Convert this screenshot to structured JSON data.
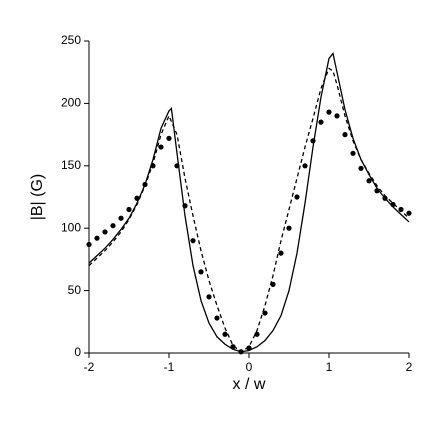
{
  "chart_data": {
    "type": "line",
    "xlabel": "x / w",
    "ylabel": "|B| (G)",
    "xlim": [
      -2,
      2
    ],
    "ylim": [
      0,
      250
    ],
    "xticks": [
      -2,
      -1,
      0,
      1,
      2
    ],
    "yticks": [
      0,
      50,
      100,
      150,
      200,
      250
    ],
    "grid": false,
    "series": [
      {
        "style": "solid",
        "color": "#000000",
        "x": [
          -2,
          -1.9,
          -1.8,
          -1.7,
          -1.6,
          -1.5,
          -1.4,
          -1.3,
          -1.2,
          -1.1,
          -1.0,
          -0.97,
          -0.9,
          -0.8,
          -0.7,
          -0.6,
          -0.5,
          -0.4,
          -0.3,
          -0.2,
          -0.1,
          0,
          0.1,
          0.2,
          0.3,
          0.4,
          0.5,
          0.6,
          0.7,
          0.8,
          0.9,
          1.0,
          1.05,
          1.1,
          1.2,
          1.3,
          1.4,
          1.5,
          1.6,
          1.7,
          1.8,
          1.9,
          2.0
        ],
        "values": [
          72,
          78,
          84,
          91,
          99,
          108,
          120,
          135,
          155,
          180,
          194,
          196,
          160,
          110,
          70,
          42,
          24,
          13,
          7,
          3,
          1,
          2,
          5,
          10,
          18,
          30,
          50,
          80,
          120,
          165,
          205,
          236,
          240,
          225,
          195,
          172,
          155,
          143,
          132,
          124,
          117,
          111,
          105
        ]
      },
      {
        "style": "dashed",
        "color": "#000000",
        "x": [
          -2,
          -1.9,
          -1.8,
          -1.7,
          -1.6,
          -1.5,
          -1.4,
          -1.3,
          -1.2,
          -1.1,
          -1.0,
          -0.9,
          -0.8,
          -0.7,
          -0.6,
          -0.5,
          -0.4,
          -0.3,
          -0.2,
          -0.1,
          0,
          0.1,
          0.2,
          0.3,
          0.4,
          0.5,
          0.6,
          0.7,
          0.8,
          0.9,
          1.0,
          1.05,
          1.1,
          1.2,
          1.3,
          1.4,
          1.5,
          1.6,
          1.7,
          1.8,
          1.9,
          2.0
        ],
        "values": [
          70,
          76,
          82,
          89,
          97,
          107,
          119,
          134,
          152,
          175,
          190,
          175,
          140,
          110,
          82,
          58,
          38,
          20,
          6,
          1,
          5,
          18,
          38,
          62,
          90,
          115,
          140,
          165,
          188,
          212,
          228,
          226,
          215,
          190,
          170,
          155,
          144,
          134,
          126,
          120,
          114,
          108
        ]
      },
      {
        "style": "dots",
        "color": "#000000",
        "x": [
          -2,
          -1.9,
          -1.8,
          -1.7,
          -1.6,
          -1.5,
          -1.4,
          -1.3,
          -1.2,
          -1.1,
          -1.0,
          -0.9,
          -0.8,
          -0.7,
          -0.6,
          -0.5,
          -0.4,
          -0.3,
          -0.2,
          -0.1,
          0,
          0.1,
          0.2,
          0.3,
          0.4,
          0.5,
          0.6,
          0.7,
          0.8,
          0.9,
          1.0,
          1.1,
          1.2,
          1.3,
          1.4,
          1.5,
          1.6,
          1.7,
          1.8,
          1.9,
          2.0
        ],
        "values": [
          87,
          92,
          97,
          102,
          108,
          115,
          124,
          135,
          150,
          165,
          172,
          150,
          118,
          90,
          65,
          45,
          28,
          15,
          5,
          1,
          4,
          15,
          32,
          55,
          80,
          100,
          125,
          150,
          170,
          185,
          193,
          190,
          175,
          160,
          148,
          138,
          130,
          124,
          119,
          115,
          112
        ]
      }
    ]
  }
}
